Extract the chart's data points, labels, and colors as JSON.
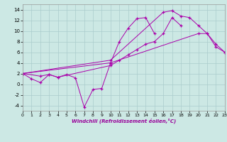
{
  "xlabel": "Windchill (Refroidissement éolien,°C)",
  "bg_color": "#cce8e4",
  "grid_color": "#aacccc",
  "line_color": "#aa00aa",
  "xlim": [
    0,
    23
  ],
  "ylim": [
    -5,
    15
  ],
  "xticks": [
    0,
    1,
    2,
    3,
    4,
    5,
    6,
    7,
    8,
    9,
    10,
    11,
    12,
    13,
    14,
    15,
    16,
    17,
    18,
    19,
    20,
    21,
    22,
    23
  ],
  "yticks": [
    -4,
    -2,
    0,
    2,
    4,
    6,
    8,
    10,
    12,
    14
  ],
  "series": [
    {
      "x": [
        0,
        1,
        2,
        3,
        4,
        5,
        6,
        7,
        8,
        9,
        10,
        11,
        12,
        13,
        14,
        15
      ],
      "y": [
        2,
        1,
        0.3,
        1.8,
        1.3,
        1.8,
        1.2,
        -4.3,
        -1.0,
        -0.8,
        4.0,
        8.0,
        10.5,
        12.3,
        12.5,
        9.5
      ]
    },
    {
      "x": [
        0,
        2,
        3,
        4,
        10,
        11,
        12,
        13,
        14,
        15,
        16,
        17,
        18
      ],
      "y": [
        2,
        1.5,
        1.8,
        1.3,
        3.5,
        4.5,
        5.5,
        6.5,
        7.5,
        8.0,
        9.5,
        12.5,
        11.0
      ]
    },
    {
      "x": [
        0,
        10,
        16,
        17,
        18,
        19,
        20,
        21,
        22,
        23
      ],
      "y": [
        2,
        4.5,
        13.5,
        13.8,
        12.8,
        12.5,
        11.0,
        9.5,
        7.5,
        6.0
      ]
    },
    {
      "x": [
        0,
        10,
        20,
        21,
        22,
        23
      ],
      "y": [
        2,
        4.0,
        9.5,
        9.5,
        7.0,
        6.0
      ]
    }
  ]
}
